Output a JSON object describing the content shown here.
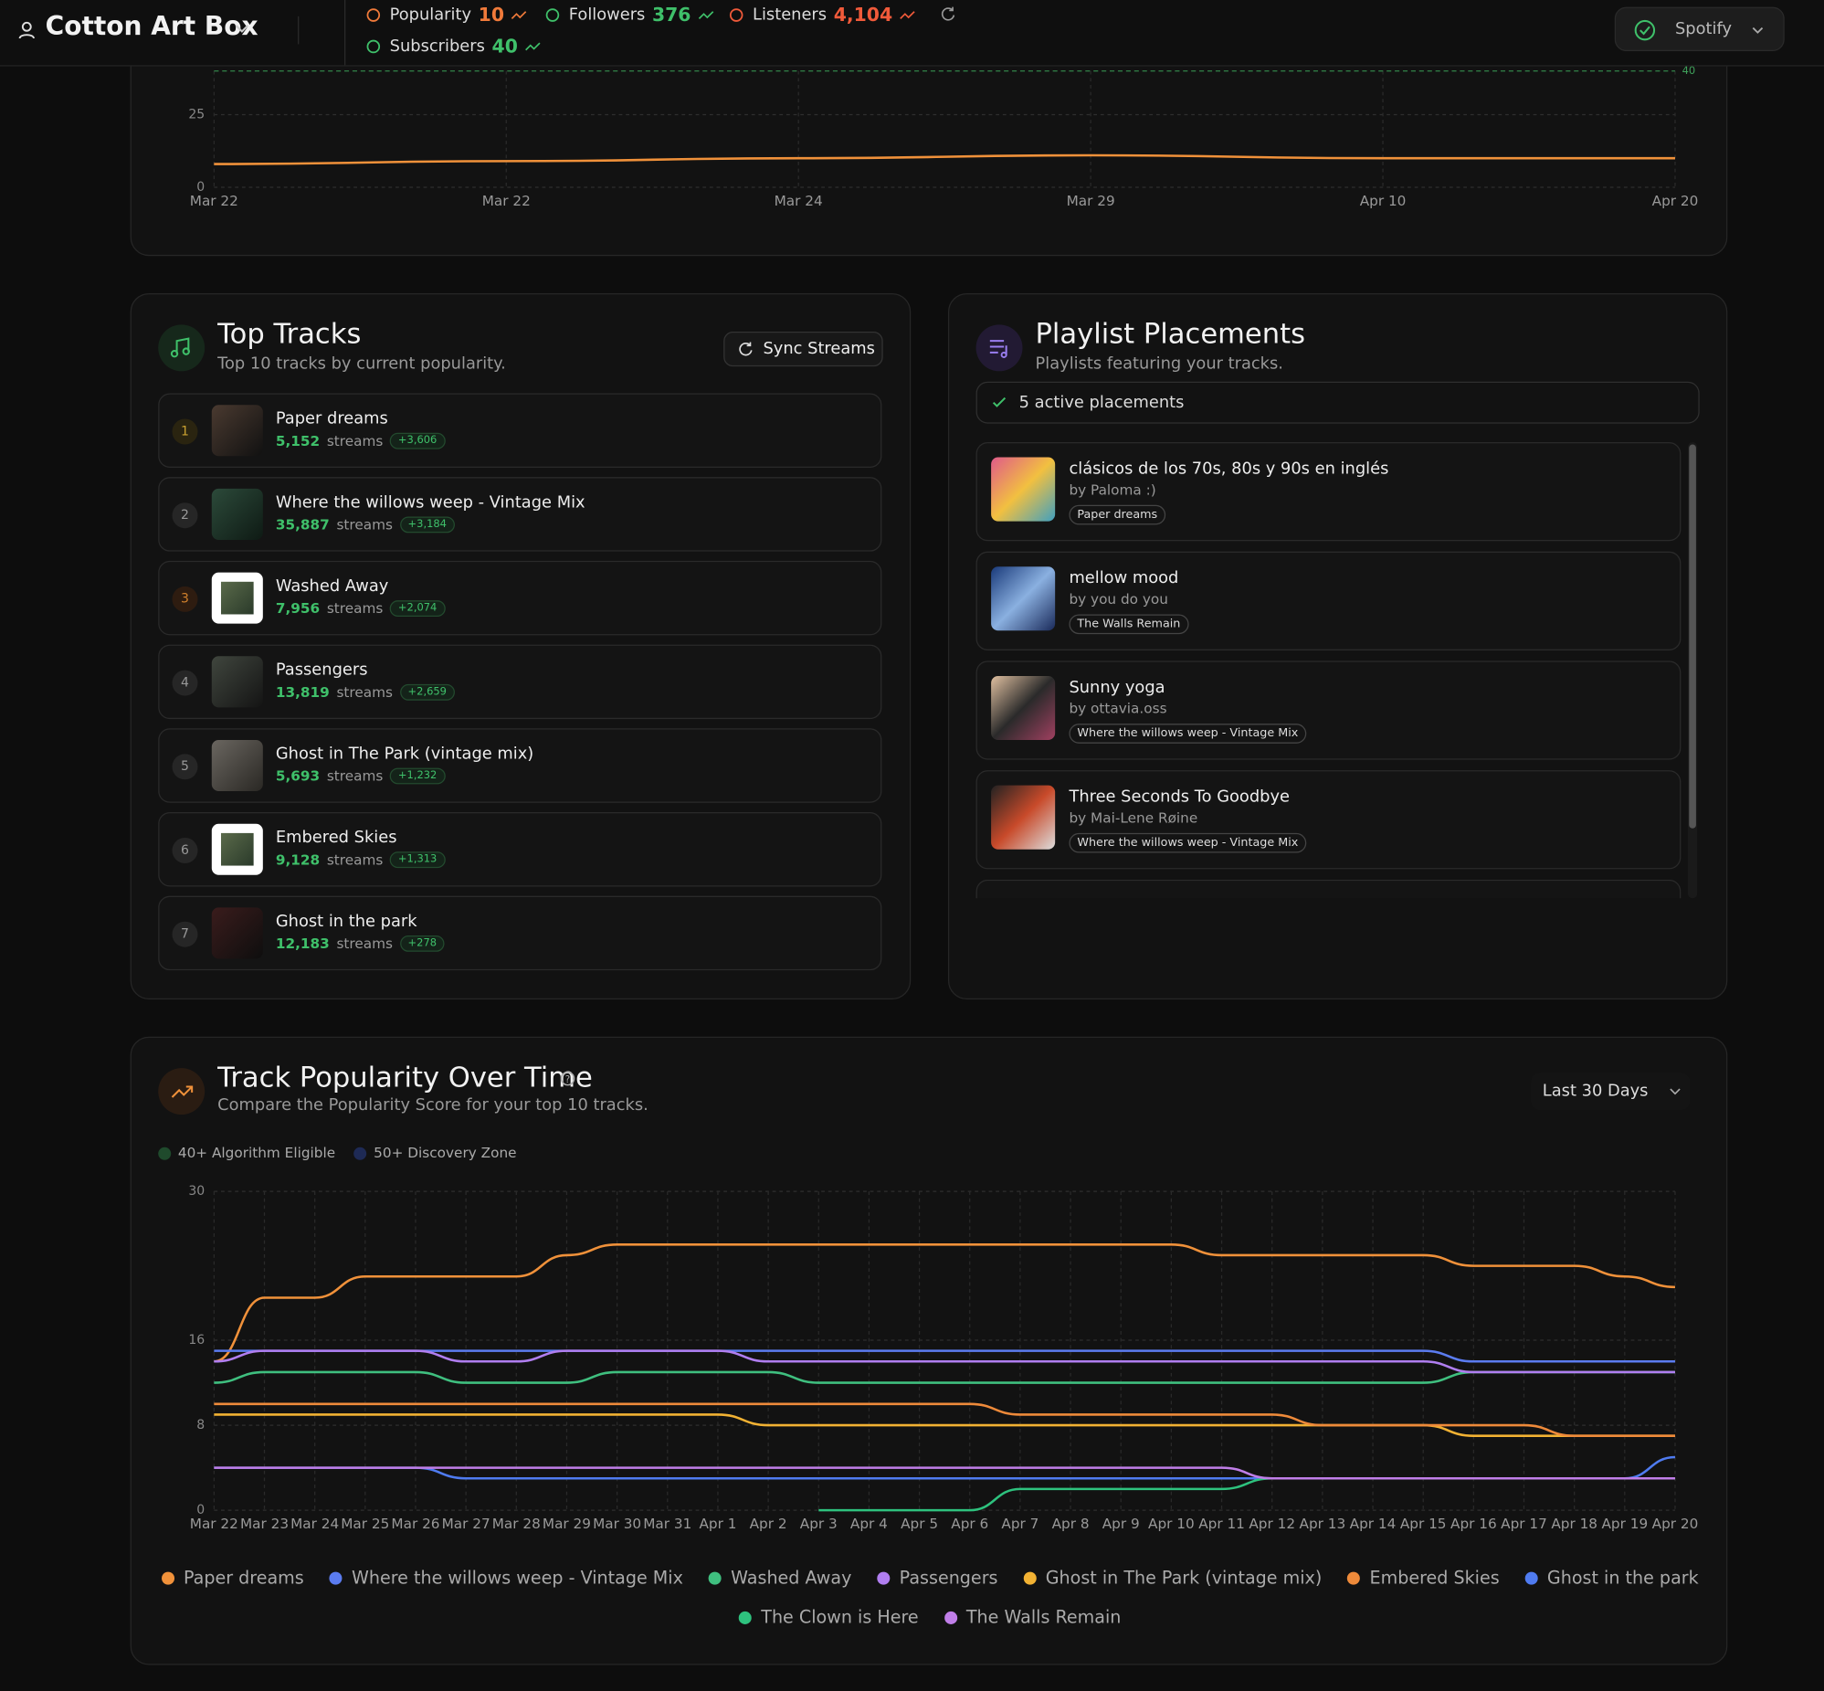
{
  "header": {
    "artist": "Cotton Art Box",
    "platform": "Spotify",
    "stats": [
      {
        "label": "Popularity",
        "value": "10",
        "color": "#f07a3a"
      },
      {
        "label": "Followers",
        "value": "376",
        "color": "#3fc06a"
      },
      {
        "label": "Listeners",
        "value": "4,104",
        "color": "#f05a3a"
      },
      {
        "label": "Subscribers",
        "value": "40",
        "color": "#3fc06a"
      }
    ]
  },
  "overview_chart": {
    "type": "line",
    "categories": [
      "Mar 22",
      "Mar 22",
      "Mar 24",
      "Mar 29",
      "Apr 10",
      "Apr 20"
    ],
    "values": [
      8,
      9,
      10,
      11,
      10,
      10
    ],
    "color": "#f0913a",
    "ylim": [
      0,
      40
    ],
    "yticks": [
      0,
      25
    ],
    "reference_line": 40,
    "grid": true
  },
  "top_tracks": {
    "title": "Top Tracks",
    "subtitle": "Top 10 tracks by current popularity.",
    "button": "Sync Streams",
    "streams_word": "streams",
    "tracks": [
      {
        "rank": "1",
        "name": "Paper dreams",
        "streams": "5,152",
        "change": "+3,606"
      },
      {
        "rank": "2",
        "name": "Where the willows weep - Vintage Mix",
        "streams": "35,887",
        "change": "+3,184"
      },
      {
        "rank": "3",
        "name": "Washed Away",
        "streams": "7,956",
        "change": "+2,074"
      },
      {
        "rank": "4",
        "name": "Passengers",
        "streams": "13,819",
        "change": "+2,659"
      },
      {
        "rank": "5",
        "name": "Ghost in The Park (vintage mix)",
        "streams": "5,693",
        "change": "+1,232"
      },
      {
        "rank": "6",
        "name": "Embered Skies",
        "streams": "9,128",
        "change": "+1,313"
      },
      {
        "rank": "7",
        "name": "Ghost in the park",
        "streams": "12,183",
        "change": "+278"
      }
    ]
  },
  "playlists": {
    "title": "Playlist Placements",
    "subtitle": "Playlists featuring your tracks.",
    "status": "5 active placements",
    "items": [
      {
        "name": "clásicos de los 70s, 80s y 90s en inglés",
        "by": "by Paloma :)",
        "track": "Paper dreams"
      },
      {
        "name": "mellow mood",
        "by": "by you do you",
        "track": "The Walls Remain"
      },
      {
        "name": "Sunny yoga",
        "by": "by ottavia.oss",
        "track": "Where the willows weep - Vintage Mix"
      },
      {
        "name": "Three Seconds To Goodbye",
        "by": "by Mai-Lene Røine",
        "track": "Where the willows weep - Vintage Mix"
      }
    ]
  },
  "popularity_chart": {
    "type": "line",
    "title": "Track Popularity Over Time",
    "subtitle": "Compare the Popularity Score for your top 10 tracks.",
    "range": "Last 30 Days",
    "zones": [
      {
        "name": "40+ Algorithm Eligible",
        "color": "#1f4a2c"
      },
      {
        "name": "50+ Discovery Zone",
        "color": "#1e2a55"
      }
    ],
    "categories": [
      "Mar 22",
      "Mar 23",
      "Mar 24",
      "Mar 25",
      "Mar 26",
      "Mar 27",
      "Mar 28",
      "Mar 29",
      "Mar 30",
      "Mar 31",
      "Apr 1",
      "Apr 2",
      "Apr 3",
      "Apr 4",
      "Apr 5",
      "Apr 6",
      "Apr 7",
      "Apr 8",
      "Apr 9",
      "Apr 10",
      "Apr 11",
      "Apr 12",
      "Apr 13",
      "Apr 14",
      "Apr 15",
      "Apr 16",
      "Apr 17",
      "Apr 18",
      "Apr 19",
      "Apr 20"
    ],
    "ylim": [
      0,
      30
    ],
    "yticks": [
      0,
      8,
      16,
      30
    ],
    "grid": true,
    "series": [
      {
        "name": "Paper dreams",
        "color": "#f0913a",
        "values": [
          14,
          20,
          20,
          22,
          22,
          22,
          22,
          24,
          25,
          25,
          25,
          25,
          25,
          25,
          25,
          25,
          25,
          25,
          25,
          25,
          24,
          24,
          24,
          24,
          24,
          23,
          23,
          23,
          22,
          21
        ]
      },
      {
        "name": "Where the willows weep - Vintage Mix",
        "color": "#5b7cf0",
        "values": [
          15,
          15,
          15,
          15,
          15,
          15,
          15,
          15,
          15,
          15,
          15,
          15,
          15,
          15,
          15,
          15,
          15,
          15,
          15,
          15,
          15,
          15,
          15,
          15,
          15,
          14,
          14,
          14,
          14,
          14
        ]
      },
      {
        "name": "Washed Away",
        "color": "#3fbf7f",
        "values": [
          12,
          13,
          13,
          13,
          13,
          12,
          12,
          12,
          13,
          13,
          13,
          13,
          12,
          12,
          12,
          12,
          12,
          12,
          12,
          12,
          12,
          12,
          12,
          12,
          12,
          13,
          13,
          13,
          13,
          13
        ]
      },
      {
        "name": "Passengers",
        "color": "#b07ef0",
        "values": [
          14,
          15,
          15,
          15,
          15,
          14,
          14,
          15,
          15,
          15,
          15,
          14,
          14,
          14,
          14,
          14,
          14,
          14,
          14,
          14,
          14,
          14,
          14,
          14,
          14,
          13,
          13,
          13,
          13,
          13
        ]
      },
      {
        "name": "Ghost in The Park (vintage mix)",
        "color": "#f2b233",
        "values": [
          9,
          9,
          9,
          9,
          9,
          9,
          9,
          9,
          9,
          9,
          9,
          8,
          8,
          8,
          8,
          8,
          8,
          8,
          8,
          8,
          8,
          8,
          8,
          8,
          8,
          7,
          7,
          7,
          7,
          7
        ]
      },
      {
        "name": "Embered Skies",
        "color": "#ee8a3a",
        "values": [
          10,
          10,
          10,
          10,
          10,
          10,
          10,
          10,
          10,
          10,
          10,
          10,
          10,
          10,
          10,
          10,
          9,
          9,
          9,
          9,
          9,
          9,
          8,
          8,
          8,
          8,
          8,
          7,
          7,
          7
        ]
      },
      {
        "name": "Ghost in the park",
        "color": "#4f7bf0",
        "values": [
          4,
          4,
          4,
          4,
          4,
          3,
          3,
          3,
          3,
          3,
          3,
          3,
          3,
          3,
          3,
          3,
          3,
          3,
          3,
          3,
          3,
          3,
          3,
          3,
          3,
          3,
          3,
          3,
          3,
          5
        ]
      },
      {
        "name": "The Clown is Here",
        "color": "#2ec27e",
        "values": [
          null,
          null,
          null,
          null,
          null,
          null,
          null,
          null,
          null,
          null,
          null,
          null,
          0,
          0,
          0,
          0,
          2,
          2,
          2,
          2,
          2,
          3,
          3,
          3,
          3,
          3,
          3,
          3,
          3,
          3
        ]
      },
      {
        "name": "The Walls Remain",
        "color": "#c07ee8",
        "values": [
          4,
          4,
          4,
          4,
          4,
          4,
          4,
          4,
          4,
          4,
          4,
          4,
          4,
          4,
          4,
          4,
          4,
          4,
          4,
          4,
          4,
          3,
          3,
          3,
          3,
          3,
          3,
          3,
          3,
          3
        ]
      }
    ]
  }
}
